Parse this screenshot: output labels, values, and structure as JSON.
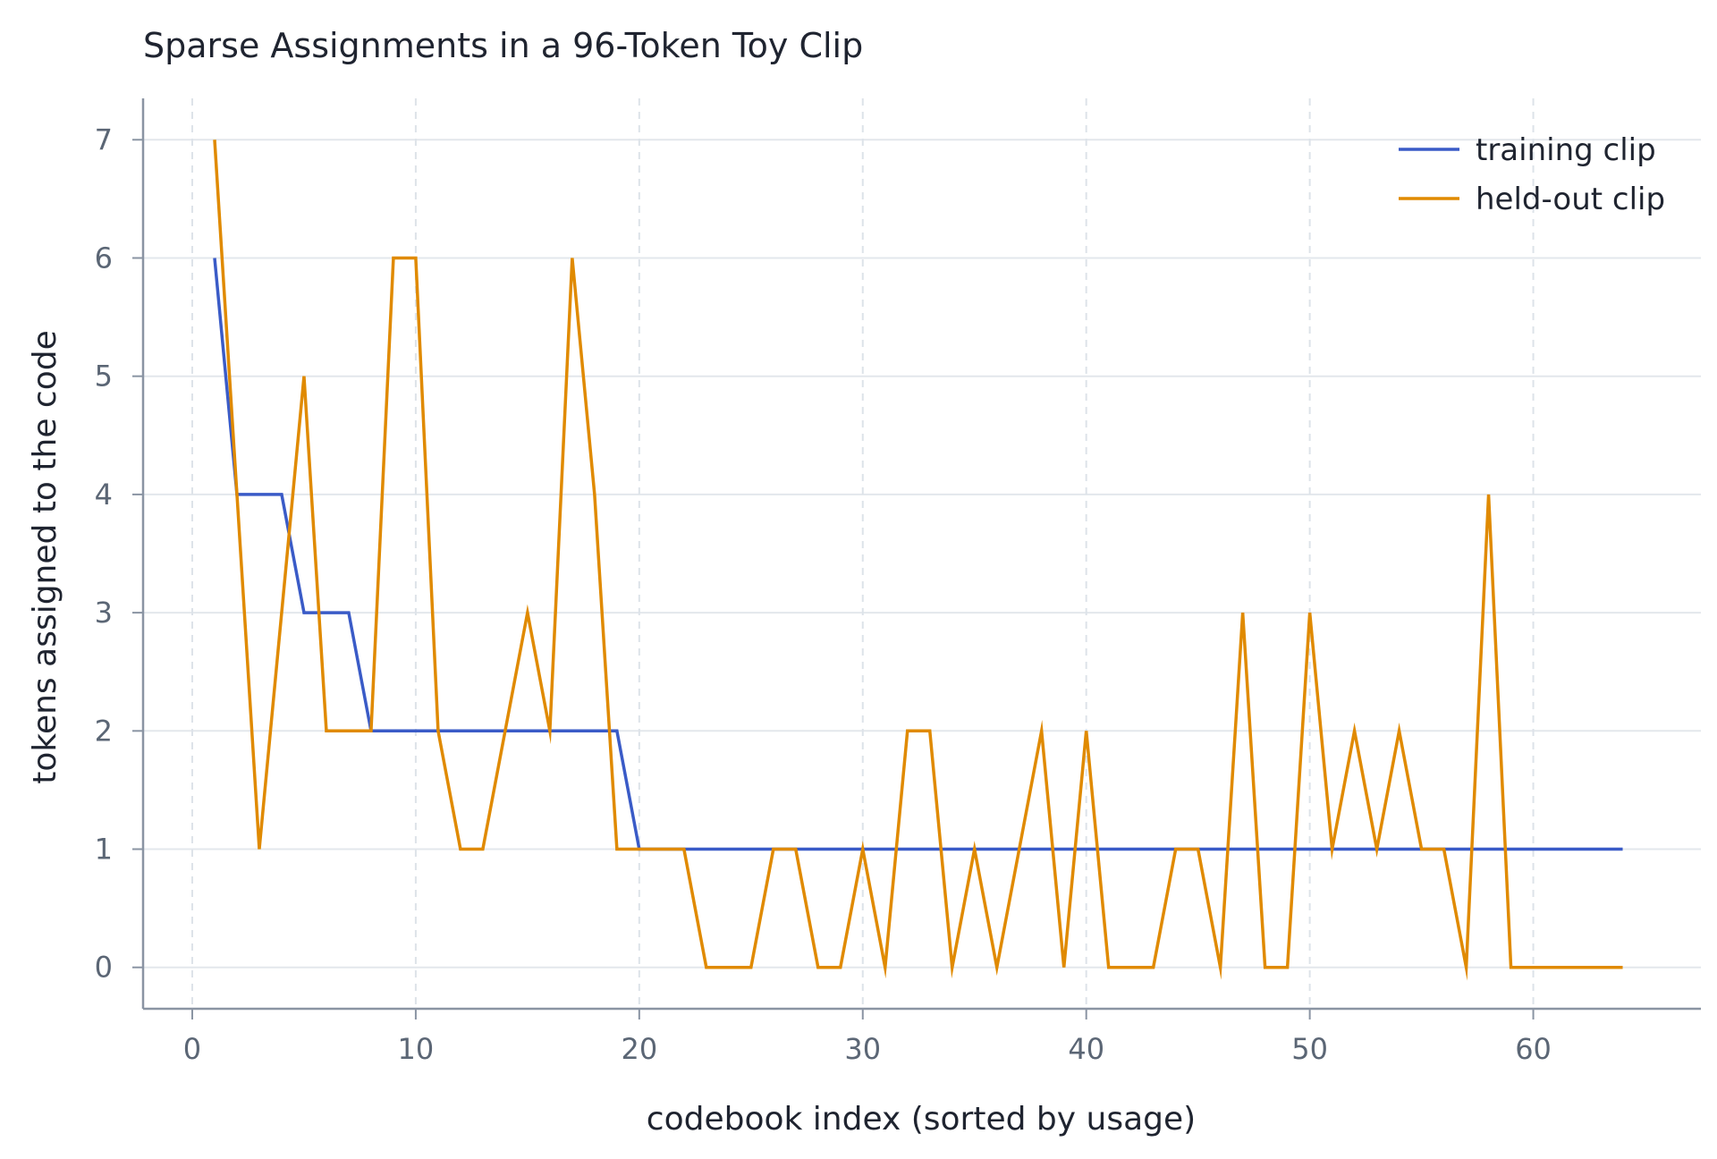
{
  "chart_data": {
    "type": "line",
    "title": "Sparse Assignments in a 96-Token Toy Clip",
    "xlabel": "codebook index (sorted by usage)",
    "ylabel": "tokens assigned to the code",
    "xlim": [
      -2.2,
      67.5
    ],
    "ylim": [
      -0.35,
      7.35
    ],
    "xticks": [
      0,
      10,
      20,
      30,
      40,
      50,
      60
    ],
    "yticks": [
      0,
      1,
      2,
      3,
      4,
      5,
      6,
      7
    ],
    "x_grid": true,
    "x_grid_style": "dashed",
    "y_grid": true,
    "legend_position": "top-right",
    "x": [
      1,
      2,
      3,
      4,
      5,
      6,
      7,
      8,
      9,
      10,
      11,
      12,
      13,
      14,
      15,
      16,
      17,
      18,
      19,
      20,
      21,
      22,
      23,
      24,
      25,
      26,
      27,
      28,
      29,
      30,
      31,
      32,
      33,
      34,
      35,
      36,
      37,
      38,
      39,
      40,
      41,
      42,
      43,
      44,
      45,
      46,
      47,
      48,
      49,
      50,
      51,
      52,
      53,
      54,
      55,
      56,
      57,
      58,
      59,
      60,
      61,
      62,
      63,
      64
    ],
    "series": [
      {
        "name": "training clip",
        "color": "#3a5bc7",
        "values": [
          6,
          4,
          4,
          4,
          3,
          3,
          3,
          2,
          2,
          2,
          2,
          2,
          2,
          2,
          2,
          2,
          2,
          2,
          2,
          1,
          1,
          1,
          1,
          1,
          1,
          1,
          1,
          1,
          1,
          1,
          1,
          1,
          1,
          1,
          1,
          1,
          1,
          1,
          1,
          1,
          1,
          1,
          1,
          1,
          1,
          1,
          1,
          1,
          1,
          1,
          1,
          1,
          1,
          1,
          1,
          1,
          1,
          1,
          1,
          1,
          1,
          1,
          1,
          1
        ]
      },
      {
        "name": "held-out clip",
        "color": "#e08a00",
        "values": [
          7,
          4,
          1,
          3,
          5,
          2,
          2,
          2,
          6,
          6,
          2,
          1,
          1,
          2,
          3,
          2,
          6,
          4,
          1,
          1,
          1,
          1,
          0,
          0,
          0,
          1,
          1,
          0,
          0,
          1,
          0,
          2,
          2,
          0,
          1,
          0,
          1,
          2,
          0,
          2,
          0,
          0,
          0,
          1,
          1,
          0,
          3,
          0,
          0,
          3,
          1,
          2,
          1,
          2,
          1,
          1,
          0,
          4,
          0,
          0,
          0,
          0,
          0,
          0
        ]
      }
    ]
  }
}
